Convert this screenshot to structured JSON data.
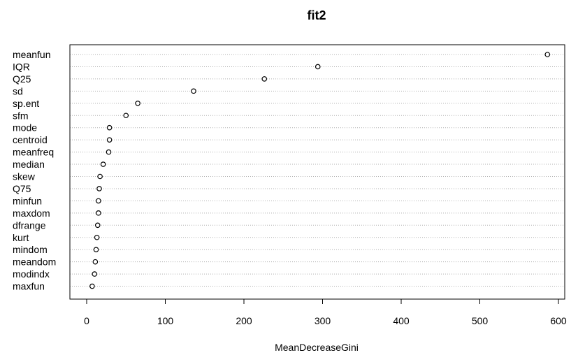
{
  "chart_data": {
    "type": "scatter",
    "title": "fit2",
    "xlabel": "MeanDecreaseGini",
    "ylabel": "",
    "xlim": [
      -25,
      610
    ],
    "xticks": [
      0,
      100,
      200,
      300,
      400,
      500,
      600
    ],
    "grid": "horizontal dotted",
    "categories": [
      "meanfun",
      "IQR",
      "Q25",
      "sd",
      "sp.ent",
      "sfm",
      "mode",
      "centroid",
      "meanfreq",
      "median",
      "skew",
      "Q75",
      "minfun",
      "maxdom",
      "dfrange",
      "kurt",
      "mindom",
      "meandom",
      "modindx",
      "maxfun"
    ],
    "values": [
      586,
      294,
      226,
      136,
      65,
      50,
      29,
      29,
      28,
      21,
      17,
      16,
      15,
      15,
      14,
      13,
      12,
      11,
      10,
      7
    ]
  }
}
